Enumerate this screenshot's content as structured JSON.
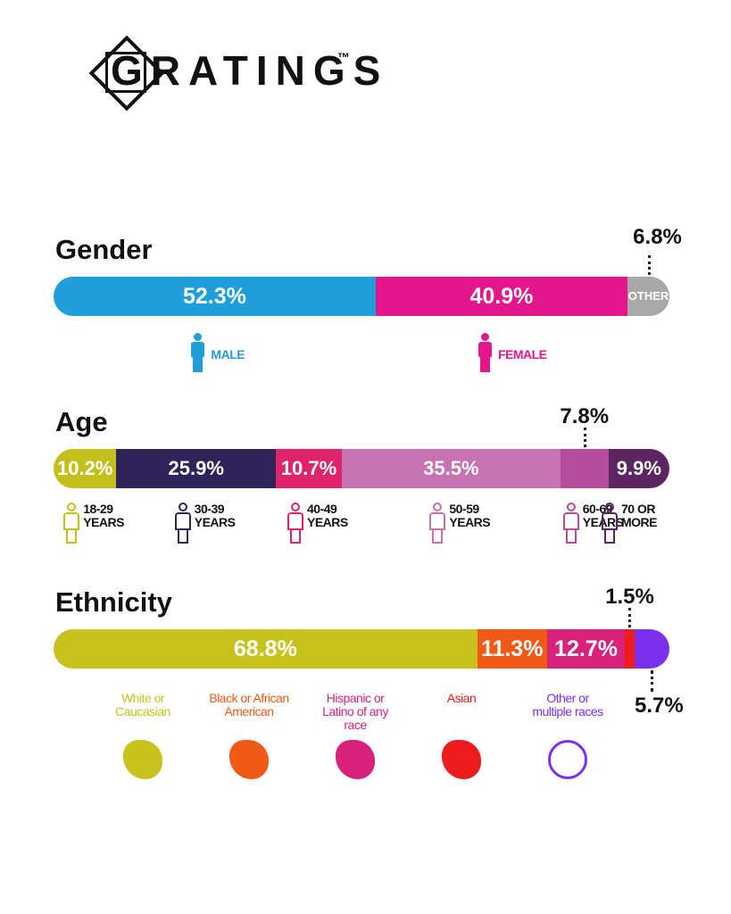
{
  "logo": {
    "name": "GRATINGS",
    "trademark": "™"
  },
  "chart_data": [
    {
      "type": "stacked_bar",
      "title": "Gender",
      "series": [
        {
          "name": "MALE",
          "color": "#1f9fd9",
          "values": [
            52.3
          ],
          "value_labels": [
            "52.3%"
          ]
        },
        {
          "name": "FEMALE",
          "color": "#e3168b",
          "values": [
            40.9
          ],
          "value_labels": [
            "40.9%"
          ]
        },
        {
          "name": "OTHER",
          "color": "#a8a8a8",
          "values": [
            6.8
          ],
          "value_labels": [
            "6.8%"
          ]
        }
      ]
    },
    {
      "type": "stacked_bar",
      "title": "Age",
      "series": [
        {
          "name": "18-29 YEARS",
          "color": "#c5bf1c",
          "values": [
            10.2
          ],
          "value_labels": [
            "10.2%"
          ]
        },
        {
          "name": "30-39 YEARS",
          "color": "#2e2459",
          "values": [
            25.9
          ],
          "value_labels": [
            "25.9%"
          ]
        },
        {
          "name": "40-49 YEARS",
          "color": "#e0246b",
          "values": [
            10.7
          ],
          "value_labels": [
            "10.7%"
          ]
        },
        {
          "name": "50-59 YEARS",
          "color": "#c772b1",
          "values": [
            35.5
          ],
          "value_labels": [
            "35.5%"
          ]
        },
        {
          "name": "60-69 YEARS",
          "color": "#b44b9c",
          "values": [
            7.8
          ],
          "value_labels": [
            "7.8%"
          ]
        },
        {
          "name": "70 OR MORE",
          "color": "#5c2561",
          "values": [
            9.9
          ],
          "value_labels": [
            "9.9%"
          ]
        }
      ]
    },
    {
      "type": "stacked_bar",
      "title": "Ethnicity",
      "series": [
        {
          "name": "White or Caucasian",
          "color": "#c8c21c",
          "values": [
            68.8
          ],
          "value_labels": [
            "68.8%"
          ]
        },
        {
          "name": "Black or African American",
          "color": "#f05a16",
          "values": [
            11.3
          ],
          "value_labels": [
            "11.3%"
          ]
        },
        {
          "name": "Hispanic or Latino of any race",
          "color": "#d8217b",
          "values": [
            12.7
          ],
          "value_labels": [
            "12.7%"
          ]
        },
        {
          "name": "Asian",
          "color": "#ee1c1c",
          "values": [
            1.5
          ],
          "value_labels": [
            "1.5%"
          ]
        },
        {
          "name": "Other or multiple races",
          "color": "#7b30ef",
          "values": [
            5.7
          ],
          "value_labels": [
            "5.7%"
          ]
        }
      ]
    }
  ]
}
